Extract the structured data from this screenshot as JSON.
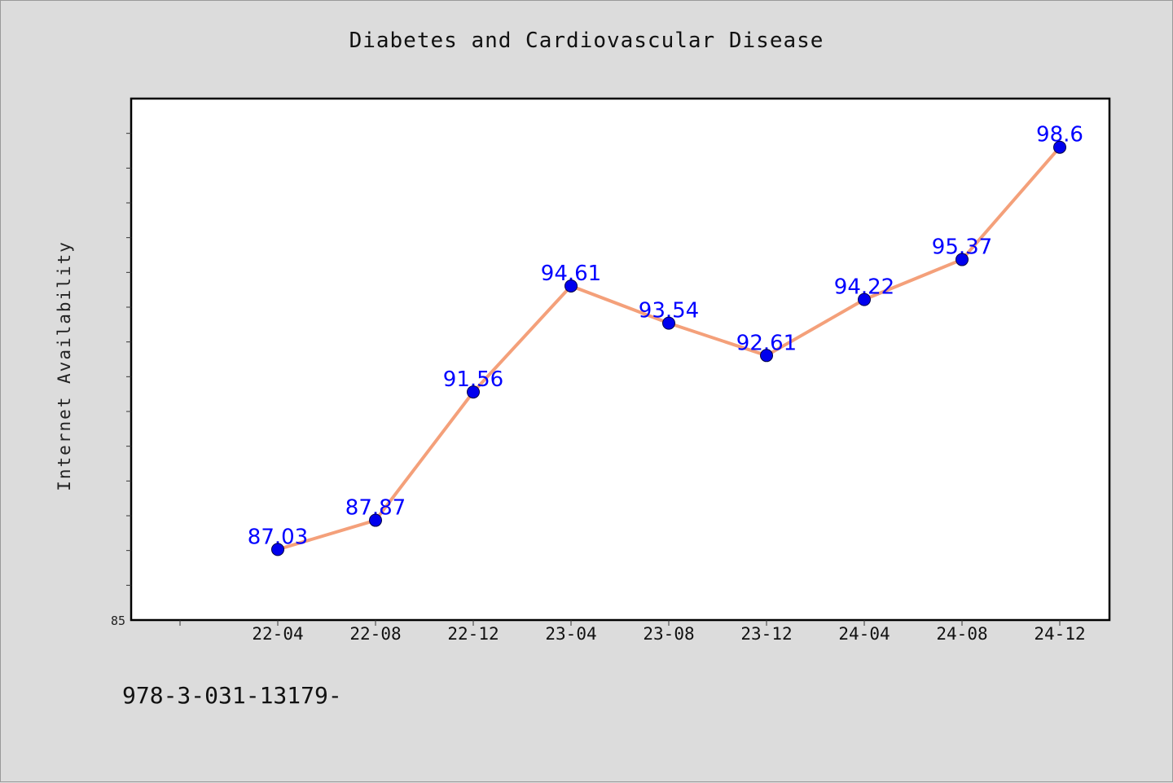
{
  "chart_data": {
    "type": "line",
    "title": "Diabetes and Cardiovascular Disease",
    "ylabel": "Internet Availability",
    "xlabel": "",
    "categories": [
      "22-04",
      "22-08",
      "22-12",
      "23-04",
      "23-08",
      "23-12",
      "24-04",
      "24-08",
      "24-12"
    ],
    "values": [
      87.03,
      87.87,
      91.56,
      94.61,
      93.54,
      92.61,
      94.22,
      95.37,
      98.6
    ],
    "data_labels": [
      "87.03",
      "87.87",
      "91.56",
      "94.61",
      "93.54",
      "92.61",
      "94.22",
      "95.37",
      "98.6"
    ],
    "ylim": [
      85,
      100
    ],
    "y_tick_labels": [
      "85"
    ],
    "grid": false,
    "line_color": "#f4a07a",
    "marker_color": "#0000ee",
    "label_color": "#0000ff"
  },
  "footnote": "978-3-031-13179-"
}
